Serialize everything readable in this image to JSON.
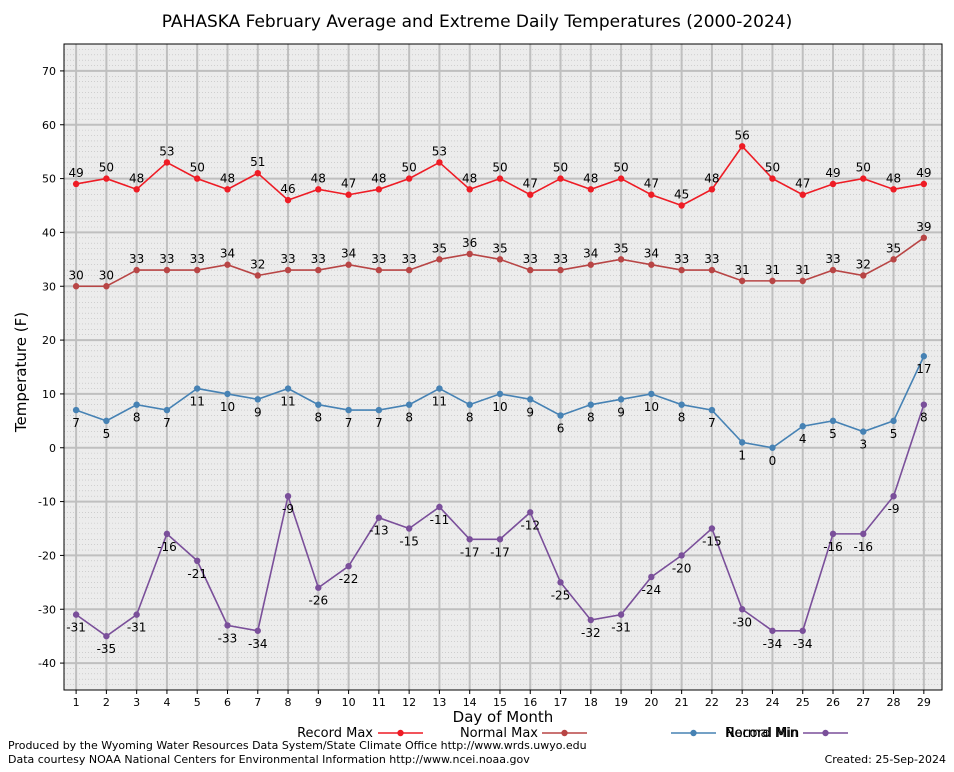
{
  "chart_data": {
    "type": "line",
    "title": "PAHASKA February Average and Extreme Daily Temperatures (2000-2024)",
    "xlabel": "Day of Month",
    "ylabel": "Temperature (F)",
    "xlim": [
      0.6,
      29.6
    ],
    "ylim": [
      -45,
      75
    ],
    "y_ticks": [
      -40,
      -30,
      -20,
      -10,
      0,
      10,
      20,
      30,
      40,
      50,
      60,
      70
    ],
    "x": [
      1,
      2,
      3,
      4,
      5,
      6,
      7,
      8,
      9,
      10,
      11,
      12,
      13,
      14,
      15,
      16,
      17,
      18,
      19,
      20,
      21,
      22,
      23,
      24,
      25,
      26,
      27,
      28,
      29
    ],
    "grid": true,
    "legend_position": "bottom",
    "series": [
      {
        "name": "Record Max",
        "color": "#ee1c25",
        "label_pos": "above",
        "values": [
          49,
          50,
          48,
          53,
          50,
          48,
          51,
          46,
          48,
          47,
          48,
          50,
          53,
          48,
          50,
          47,
          50,
          48,
          50,
          47,
          45,
          48,
          56,
          50,
          47,
          49,
          50,
          48,
          49
        ]
      },
      {
        "name": "Normal Max",
        "color": "#b84545",
        "label_pos": "above",
        "values": [
          30,
          30,
          33,
          33,
          33,
          34,
          32,
          33,
          33,
          34,
          33,
          33,
          35,
          36,
          35,
          33,
          33,
          34,
          35,
          34,
          33,
          33,
          31,
          31,
          31,
          33,
          32,
          35,
          39
        ]
      },
      {
        "name": "Normal Min",
        "color": "#4682b4",
        "label_pos": "below",
        "values": [
          7,
          5,
          8,
          7,
          11,
          10,
          9,
          11,
          8,
          7,
          7,
          8,
          11,
          8,
          10,
          9,
          6,
          8,
          9,
          10,
          8,
          7,
          1,
          0,
          4,
          5,
          3,
          5,
          17
        ]
      },
      {
        "name": "Record Min",
        "color": "#7a4f9a",
        "label_pos": "below",
        "values": [
          -31,
          -35,
          -31,
          -16,
          -21,
          -33,
          -34,
          -9,
          -26,
          -22,
          -13,
          -15,
          -11,
          -17,
          -17,
          -12,
          -25,
          -32,
          -31,
          -24,
          -20,
          -15,
          -30,
          -34,
          -34,
          -16,
          -16,
          -9,
          8
        ]
      }
    ]
  },
  "footer": {
    "produced_by": "Produced by the Wyoming Water Resources Data System/State Climate Office http://www.wrds.uwyo.edu",
    "data_courtesy": "Data courtesy NOAA National Centers for Environmental Information http://www.ncei.noaa.gov",
    "created": "Created: 25-Sep-2024"
  }
}
